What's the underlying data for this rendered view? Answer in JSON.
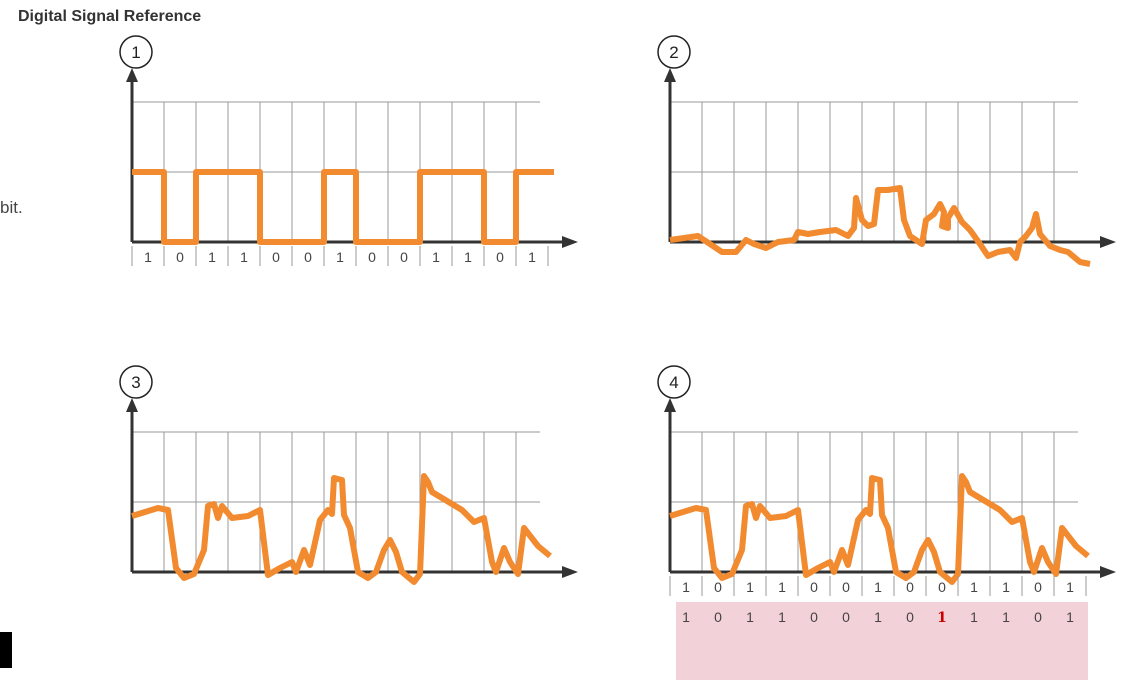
{
  "page": {
    "title": "Digital Signal Reference",
    "side_text": "bit."
  },
  "colors": {
    "signal": "#f28a30",
    "grid": "#9a9a9a",
    "axis": "#333333",
    "received_band": "#f3d1d8",
    "error_bit": "#cc0000"
  },
  "panels": [
    {
      "number": "1",
      "bits": [
        "1",
        "0",
        "1",
        "1",
        "0",
        "0",
        "1",
        "0",
        "0",
        "1",
        "1",
        "0",
        "1"
      ],
      "received_bits": []
    },
    {
      "number": "2",
      "bits": [],
      "received_bits": []
    },
    {
      "number": "3",
      "bits": [],
      "received_bits": []
    },
    {
      "number": "4",
      "bits": [
        "1",
        "0",
        "1",
        "1",
        "0",
        "0",
        "1",
        "0",
        "0",
        "1",
        "1",
        "0",
        "1"
      ],
      "received_bits": [
        "1",
        "0",
        "1",
        "1",
        "0",
        "0",
        "1",
        "0",
        "1",
        "1",
        "1",
        "0",
        "1"
      ],
      "error_bit_index": 8
    }
  ]
}
